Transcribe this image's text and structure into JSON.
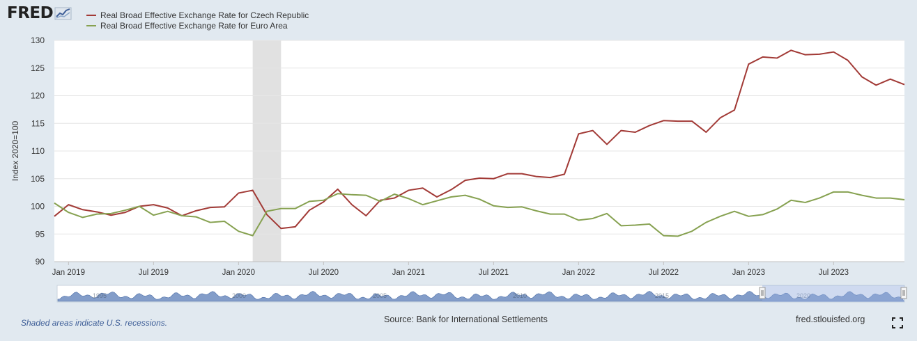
{
  "header": {
    "logo_text": "FRED",
    "logo_icon": "fred-graph-icon"
  },
  "colors": {
    "czech": "#a23a36",
    "euro": "#86a150",
    "background": "#e1e9f0",
    "recession": "#e1e1e1",
    "navigator_fill": "#6d8cc0"
  },
  "chart_data": {
    "type": "line",
    "ylabel": "Index 2020=100",
    "ylim": [
      90,
      130
    ],
    "yticks": [
      90,
      95,
      100,
      105,
      110,
      115,
      120,
      125,
      130
    ],
    "xlim": [
      "2018-12",
      "2023-12"
    ],
    "xticks": [
      {
        "date": "2019-01",
        "label": "Jan 2019"
      },
      {
        "date": "2019-07",
        "label": "Jul 2019"
      },
      {
        "date": "2020-01",
        "label": "Jan 2020"
      },
      {
        "date": "2020-07",
        "label": "Jul 2020"
      },
      {
        "date": "2021-01",
        "label": "Jan 2021"
      },
      {
        "date": "2021-07",
        "label": "Jul 2021"
      },
      {
        "date": "2022-01",
        "label": "Jan 2022"
      },
      {
        "date": "2022-07",
        "label": "Jul 2022"
      },
      {
        "date": "2023-01",
        "label": "Jan 2023"
      },
      {
        "date": "2023-07",
        "label": "Jul 2023"
      }
    ],
    "recessions": [
      {
        "start": "2020-02",
        "end": "2020-04"
      }
    ],
    "x": [
      "2018-12",
      "2019-01",
      "2019-02",
      "2019-03",
      "2019-04",
      "2019-05",
      "2019-06",
      "2019-07",
      "2019-08",
      "2019-09",
      "2019-10",
      "2019-11",
      "2019-12",
      "2020-01",
      "2020-02",
      "2020-03",
      "2020-04",
      "2020-05",
      "2020-06",
      "2020-07",
      "2020-08",
      "2020-09",
      "2020-10",
      "2020-11",
      "2020-12",
      "2021-01",
      "2021-02",
      "2021-03",
      "2021-04",
      "2021-05",
      "2021-06",
      "2021-07",
      "2021-08",
      "2021-09",
      "2021-10",
      "2021-11",
      "2021-12",
      "2022-01",
      "2022-02",
      "2022-03",
      "2022-04",
      "2022-05",
      "2022-06",
      "2022-07",
      "2022-08",
      "2022-09",
      "2022-10",
      "2022-11",
      "2022-12",
      "2023-01",
      "2023-02",
      "2023-03",
      "2023-04",
      "2023-05",
      "2023-06",
      "2023-07",
      "2023-08",
      "2023-09",
      "2023-10",
      "2023-11",
      "2023-12"
    ],
    "series": [
      {
        "name": "Real Broad Effective Exchange Rate for Czech Republic",
        "color": "#a23a36",
        "values": [
          98.2,
          100.3,
          99.4,
          99.0,
          98.4,
          98.9,
          100.0,
          100.3,
          99.7,
          98.3,
          99.2,
          99.8,
          99.9,
          102.4,
          102.9,
          98.5,
          96.0,
          96.3,
          99.3,
          100.8,
          103.1,
          100.3,
          98.3,
          101.1,
          101.5,
          102.9,
          103.3,
          101.7,
          103.0,
          104.7,
          105.1,
          105.0,
          105.9,
          105.9,
          105.4,
          105.2,
          105.8,
          113.1,
          113.7,
          111.2,
          113.7,
          113.4,
          114.6,
          115.5,
          115.4,
          115.4,
          113.4,
          116.0,
          117.4,
          125.7,
          127.0,
          126.8,
          128.2,
          127.4,
          127.5,
          127.9,
          126.4,
          123.4,
          121.9,
          123.0,
          122.0
        ]
      },
      {
        "name": "Real Broad Effective Exchange Rate for Euro Area",
        "color": "#86a150",
        "values": [
          100.6,
          98.9,
          98.0,
          98.6,
          98.7,
          99.3,
          100.0,
          98.4,
          99.1,
          98.3,
          98.1,
          97.1,
          97.3,
          95.5,
          94.7,
          99.1,
          99.6,
          99.6,
          100.9,
          101.1,
          102.3,
          102.1,
          102.0,
          100.9,
          102.2,
          101.4,
          100.3,
          101.0,
          101.7,
          102.0,
          101.3,
          100.1,
          99.8,
          99.9,
          99.2,
          98.6,
          98.6,
          97.5,
          97.8,
          98.7,
          96.5,
          96.6,
          96.8,
          94.7,
          94.6,
          95.5,
          97.1,
          98.2,
          99.1,
          98.2,
          98.5,
          99.5,
          101.1,
          100.7,
          101.5,
          102.6,
          102.6,
          102.0,
          101.5,
          101.5,
          101.2
        ]
      }
    ]
  },
  "navigator": {
    "labels": [
      "1995",
      "2000",
      "2005",
      "2010",
      "2015",
      "2020"
    ],
    "selection_label": "2020"
  },
  "footer": {
    "recession_note": "Shaded areas indicate U.S. recessions.",
    "source": "Source: Bank for International Settlements",
    "url": "fred.stlouisfed.org"
  },
  "controls": {
    "fullscreen_icon": "fullscreen-icon"
  }
}
